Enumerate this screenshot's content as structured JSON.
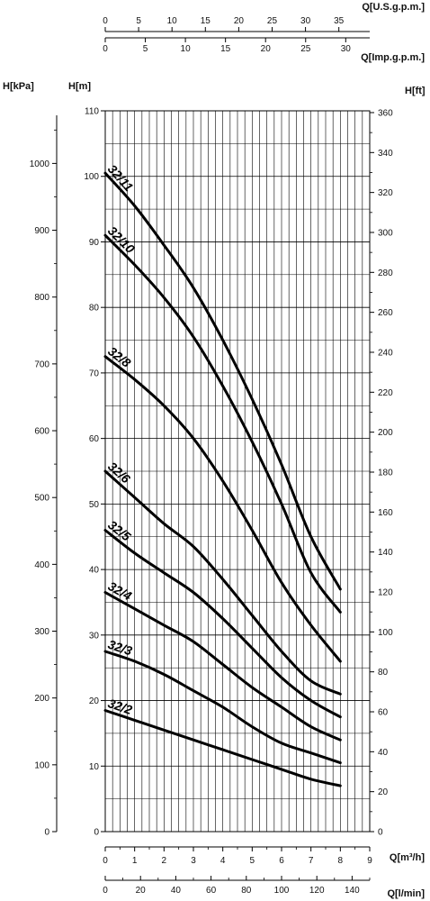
{
  "chart_data": {
    "type": "line",
    "units": {
      "top_us": "Q[U.S.g.p.m.]",
      "top_imp": "Q[Imp.g.p.m.]",
      "kpa": "H[kPa]",
      "m": "H[m]",
      "ft": "H[ft]",
      "m3h": "Q[m³/h]",
      "lmin": "Q[l/min]"
    },
    "ticks": {
      "us_gpm": [
        "0",
        "5",
        "10",
        "15",
        "20",
        "25",
        "30",
        "35"
      ],
      "imp_gpm": [
        "0",
        "5",
        "10",
        "15",
        "20",
        "25",
        "30"
      ],
      "h_m": [
        "0",
        "10",
        "20",
        "30",
        "40",
        "50",
        "60",
        "70",
        "80",
        "90",
        "100",
        "110"
      ],
      "h_kpa": [
        "0",
        "100",
        "200",
        "300",
        "400",
        "500",
        "600",
        "700",
        "800",
        "900",
        "1000"
      ],
      "h_ft": [
        "0",
        "20",
        "40",
        "60",
        "80",
        "100",
        "120",
        "140",
        "160",
        "180",
        "200",
        "220",
        "240",
        "260",
        "280",
        "300",
        "320",
        "340",
        "360"
      ],
      "q_m3h": [
        "0",
        "1",
        "2",
        "3",
        "4",
        "5",
        "6",
        "7",
        "8",
        "9"
      ],
      "q_lmin": [
        "0",
        "20",
        "40",
        "60",
        "80",
        "100",
        "120",
        "140"
      ]
    },
    "xlim_m3h": [
      0,
      9
    ],
    "ylim_m": [
      0,
      110
    ],
    "x": [
      0,
      1,
      2,
      3,
      4,
      5,
      6,
      7,
      8
    ],
    "series": [
      {
        "name": "32/11",
        "values": [
          100.5,
          95.5,
          89.5,
          83,
          75,
          66,
          56,
          45,
          37
        ]
      },
      {
        "name": "32/10",
        "values": [
          91,
          86.5,
          81.5,
          75.5,
          68,
          59.5,
          50,
          39.5,
          33.5
        ]
      },
      {
        "name": "32/8",
        "values": [
          72.5,
          69,
          65,
          60,
          53.5,
          46,
          38,
          31.5,
          26
        ]
      },
      {
        "name": "32/6",
        "values": [
          55,
          51,
          47,
          43.5,
          38.5,
          33,
          27.5,
          23,
          21
        ]
      },
      {
        "name": "32/5",
        "values": [
          46,
          42.5,
          39.5,
          36.5,
          32.5,
          28,
          23.5,
          20,
          17.5
        ]
      },
      {
        "name": "32/4",
        "values": [
          36.5,
          34,
          31.5,
          29,
          25.5,
          22,
          19,
          16,
          14
        ]
      },
      {
        "name": "32/3",
        "values": [
          27.5,
          26,
          24,
          21.5,
          19,
          16,
          13.5,
          12,
          10.5
        ]
      },
      {
        "name": "32/2",
        "values": [
          18.5,
          17,
          15.5,
          14,
          12.5,
          11,
          9.5,
          8,
          7
        ]
      }
    ],
    "grid": true
  }
}
